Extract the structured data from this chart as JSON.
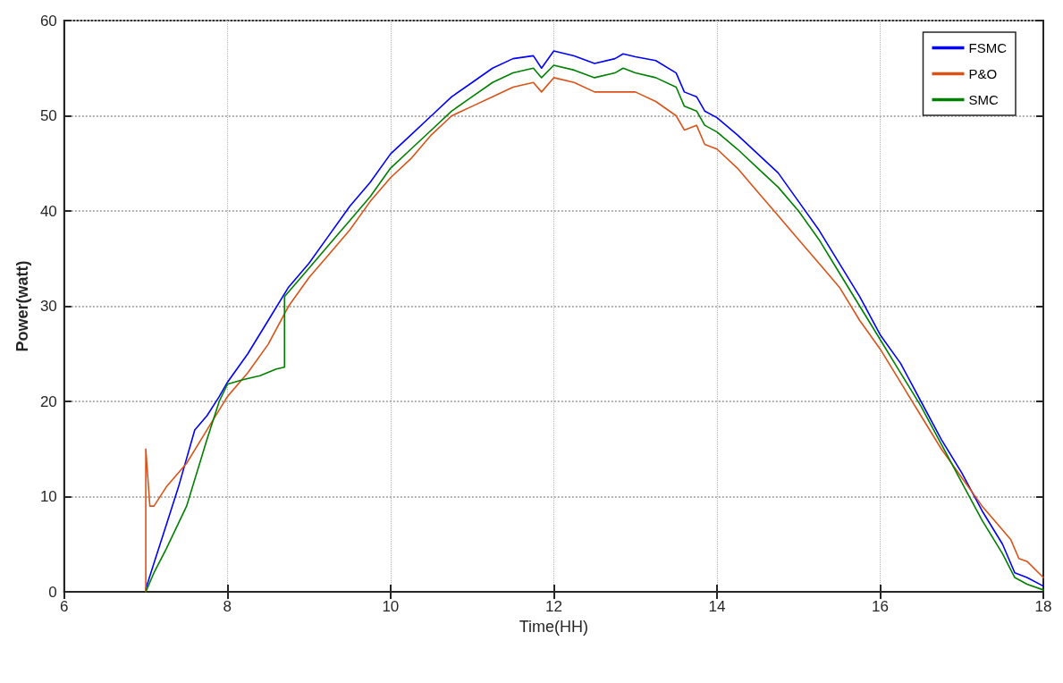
{
  "chart_data": {
    "type": "line",
    "xlabel": "Time(HH)",
    "ylabel": "Power(watt)",
    "xlim": [
      6,
      18
    ],
    "xticks": [
      6,
      8,
      10,
      12,
      14,
      16,
      18
    ],
    "ylim": [
      0,
      60
    ],
    "yticks": [
      0,
      10,
      20,
      30,
      40,
      50,
      60
    ],
    "grid": true,
    "legend": "top right",
    "marker": "none",
    "line_style": "solid",
    "series": [
      {
        "name": "FSMC",
        "color": "#0000ff",
        "x": [
          7.0,
          7.1,
          7.25,
          7.4,
          7.5,
          7.6,
          7.75,
          7.9,
          8.0,
          8.25,
          8.5,
          8.75,
          9.0,
          9.25,
          9.5,
          9.75,
          10.0,
          10.25,
          10.5,
          10.75,
          11.0,
          11.25,
          11.5,
          11.75,
          11.85,
          12.0,
          12.25,
          12.5,
          12.75,
          12.85,
          13.0,
          13.25,
          13.5,
          13.6,
          13.75,
          13.85,
          14.0,
          14.25,
          14.5,
          14.75,
          15.0,
          15.25,
          15.5,
          15.75,
          16.0,
          16.25,
          16.5,
          16.75,
          17.0,
          17.25,
          17.5,
          17.65,
          17.8,
          18.0
        ],
        "values": [
          0.3,
          3,
          7,
          11,
          14,
          17,
          18.5,
          20.5,
          22,
          25,
          28.5,
          32,
          34.5,
          37.5,
          40.5,
          43,
          46,
          48,
          50,
          52,
          53.5,
          55,
          56,
          56.3,
          55,
          56.8,
          56.3,
          55.5,
          56,
          56.5,
          56.2,
          55.8,
          54.5,
          52.5,
          52,
          50.5,
          49.8,
          48,
          46,
          44,
          41,
          38,
          34.5,
          31,
          27,
          24,
          20,
          16,
          12.5,
          8.5,
          5,
          2,
          1.5,
          0.6
        ]
      },
      {
        "name": "P&O",
        "color": "#d95319",
        "x": [
          7.0,
          7.0,
          7.05,
          7.1,
          7.25,
          7.5,
          7.75,
          8.0,
          8.25,
          8.5,
          8.75,
          9.0,
          9.25,
          9.5,
          9.75,
          10.0,
          10.25,
          10.5,
          10.75,
          11.0,
          11.25,
          11.5,
          11.75,
          11.85,
          12.0,
          12.25,
          12.5,
          12.75,
          13.0,
          13.25,
          13.5,
          13.6,
          13.75,
          13.85,
          14.0,
          14.25,
          14.5,
          14.75,
          15.0,
          15.25,
          15.5,
          15.75,
          16.0,
          16.25,
          16.5,
          16.75,
          17.0,
          17.25,
          17.5,
          17.6,
          17.7,
          17.8,
          18.0
        ],
        "values": [
          0,
          15,
          9,
          9,
          11,
          13.5,
          17,
          20.5,
          23,
          26,
          30,
          33,
          35.5,
          38,
          41,
          43.5,
          45.5,
          48,
          50,
          51,
          52,
          53,
          53.5,
          52.5,
          54,
          53.5,
          52.5,
          52.5,
          52.5,
          51.5,
          50,
          48.5,
          49,
          47,
          46.5,
          44.5,
          42,
          39.5,
          37,
          34.5,
          32,
          28.5,
          25.5,
          22,
          18.5,
          15,
          12,
          9,
          6.5,
          5.5,
          3.5,
          3.2,
          1.5
        ]
      },
      {
        "name": "SMC",
        "color": "#008000",
        "x": [
          7.0,
          7.1,
          7.25,
          7.5,
          7.75,
          7.9,
          8.0,
          8.2,
          8.4,
          8.6,
          8.7,
          8.7,
          8.75,
          9.0,
          9.25,
          9.5,
          9.75,
          10.0,
          10.25,
          10.5,
          10.75,
          11.0,
          11.25,
          11.5,
          11.75,
          11.85,
          12.0,
          12.25,
          12.5,
          12.75,
          12.85,
          13.0,
          13.25,
          13.5,
          13.6,
          13.75,
          13.85,
          14.0,
          14.25,
          14.5,
          14.75,
          15.0,
          15.25,
          15.5,
          15.75,
          16.0,
          16.25,
          16.5,
          16.75,
          17.0,
          17.25,
          17.5,
          17.65,
          17.8,
          18.0
        ],
        "values": [
          0,
          2,
          4.5,
          9,
          16,
          20,
          21.8,
          22.3,
          22.7,
          23.4,
          23.6,
          31,
          31.5,
          34,
          36.5,
          39,
          41.5,
          44.5,
          46.5,
          48.5,
          50.5,
          52,
          53.5,
          54.5,
          55,
          54,
          55.3,
          54.8,
          54,
          54.5,
          55,
          54.5,
          54,
          53,
          51,
          50.5,
          49,
          48.3,
          46.5,
          44.5,
          42.5,
          40,
          37,
          33.5,
          30,
          26.5,
          23,
          19.5,
          15.5,
          11.5,
          7.5,
          4,
          1.5,
          0.8,
          0.2
        ]
      }
    ]
  }
}
